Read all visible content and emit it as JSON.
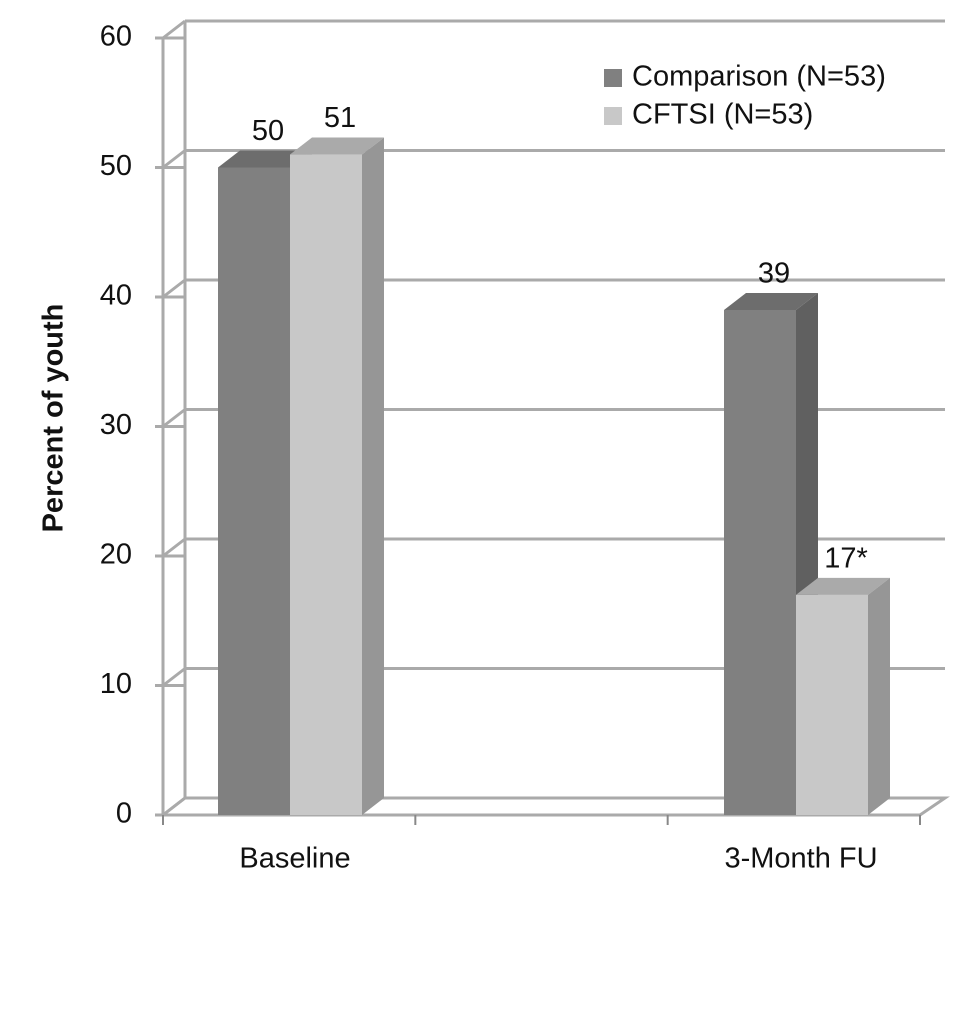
{
  "chart_data": {
    "type": "bar3d",
    "y_label": "Percent of youth",
    "categories": [
      "Baseline",
      "3-Month FU"
    ],
    "series": [
      {
        "name": "Comparison (N=53)",
        "color": "#808080",
        "values": [
          50,
          39
        ]
      },
      {
        "name": "CFTSI (N=53)",
        "color": "#c8c8c8",
        "values": [
          51,
          17
        ],
        "value_labels": [
          "51",
          "17*"
        ]
      }
    ],
    "ylim": [
      0,
      60
    ],
    "yticks": [
      0,
      10,
      20,
      30,
      40,
      50,
      60
    ],
    "grid": true,
    "legend": "top-right"
  }
}
